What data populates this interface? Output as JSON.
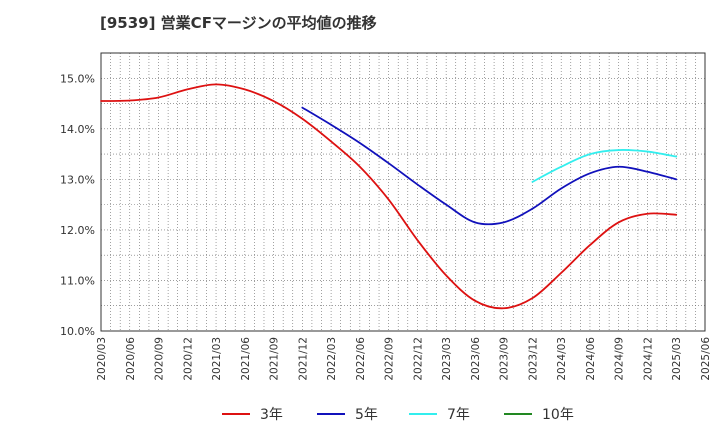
{
  "chart_data": {
    "type": "line",
    "title": "[9539]  営業CFマージンの平均値の推移",
    "x_labels": [
      "2020/03",
      "2020/06",
      "2020/09",
      "2020/12",
      "2021/03",
      "2021/06",
      "2021/09",
      "2021/12",
      "2022/03",
      "2022/06",
      "2022/09",
      "2022/12",
      "2023/03",
      "2023/06",
      "2023/09",
      "2023/12",
      "2024/03",
      "2024/06",
      "2024/09",
      "2024/12",
      "2025/03",
      "2025/06"
    ],
    "y_ticks": [
      "10.0%",
      "11.0%",
      "12.0%",
      "13.0%",
      "14.0%",
      "15.0%"
    ],
    "ylim": [
      10.0,
      15.5
    ],
    "grid": true,
    "legend_position": "bottom",
    "series": [
      {
        "name": "3年",
        "color": "#dd1111",
        "values": [
          14.55,
          14.56,
          14.62,
          14.78,
          14.88,
          14.78,
          14.55,
          14.2,
          13.75,
          13.25,
          12.6,
          11.8,
          11.1,
          10.6,
          10.45,
          10.65,
          11.15,
          11.7,
          12.15,
          12.32,
          12.3,
          null
        ]
      },
      {
        "name": "5年",
        "color": "#1111bb",
        "values": [
          null,
          null,
          null,
          null,
          null,
          null,
          null,
          14.42,
          14.08,
          13.72,
          13.32,
          12.9,
          12.5,
          12.15,
          12.15,
          12.42,
          12.82,
          13.12,
          13.25,
          13.15,
          13.0,
          null
        ]
      },
      {
        "name": "7年",
        "color": "#33eeee",
        "values": [
          null,
          null,
          null,
          null,
          null,
          null,
          null,
          null,
          null,
          null,
          null,
          null,
          null,
          null,
          null,
          12.95,
          13.25,
          13.5,
          13.58,
          13.55,
          13.45,
          null
        ]
      },
      {
        "name": "10年",
        "color": "#228822",
        "values": [
          null,
          null,
          null,
          null,
          null,
          null,
          null,
          null,
          null,
          null,
          null,
          null,
          null,
          null,
          null,
          null,
          null,
          null,
          null,
          null,
          null,
          null
        ]
      }
    ]
  }
}
